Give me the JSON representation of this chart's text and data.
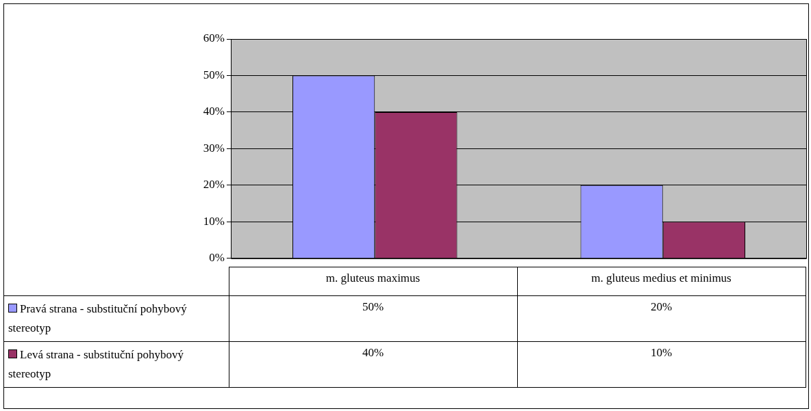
{
  "chart_data": {
    "type": "bar",
    "categories": [
      "m. gluteus maximus",
      "m. gluteus medius et minimus"
    ],
    "series": [
      {
        "name": "Pravá strana - substituční pohybový stereotyp",
        "color": "#9999ff",
        "values": [
          50,
          20
        ]
      },
      {
        "name": "Levá strana - substituční pohybový stereotyp",
        "color": "#993366",
        "values": [
          40,
          10
        ]
      }
    ],
    "ylim": [
      0,
      60
    ],
    "yticks": [
      {
        "value": 0,
        "label": "0%"
      },
      {
        "value": 10,
        "label": "10%"
      },
      {
        "value": 20,
        "label": "20%"
      },
      {
        "value": 30,
        "label": "30%"
      },
      {
        "value": 40,
        "label": "40%"
      },
      {
        "value": 50,
        "label": "50%"
      },
      {
        "value": 60,
        "label": "60%"
      }
    ],
    "value_labels": [
      [
        "50%",
        "20%"
      ],
      [
        "40%",
        "10%"
      ]
    ],
    "grid": "y",
    "legend": "bottom left"
  }
}
